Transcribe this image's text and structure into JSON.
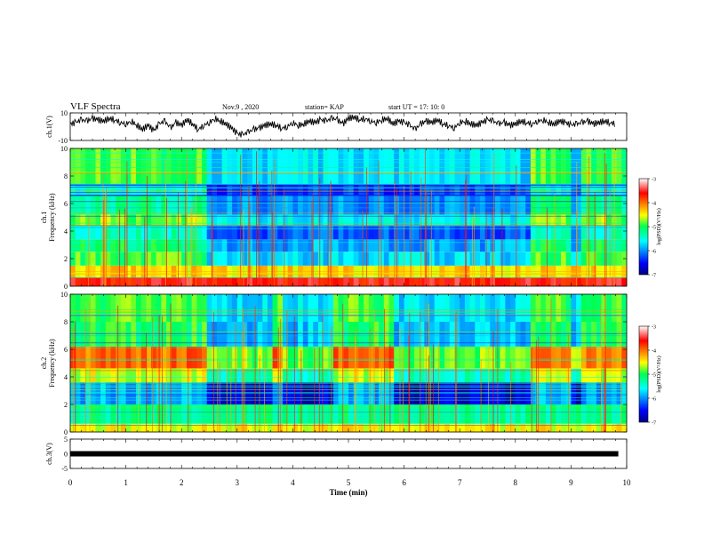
{
  "header": {
    "title": "VLF Spectra",
    "date": "Nov.9 , 2020",
    "station": "station= KAP",
    "start": "start UT = 17: 10: 0"
  },
  "chart_data": [
    {
      "type": "line",
      "panel": "ch1_waveform",
      "ylabel": "ch.1(V)",
      "ylim": [
        -10,
        10
      ],
      "yticks": [
        "10",
        "-10"
      ],
      "xlim": [
        0,
        10
      ],
      "series_color": "#000000",
      "x": [
        0,
        0.1,
        0.2,
        0.3,
        0.4,
        0.5,
        0.6,
        0.7,
        0.8,
        0.9,
        1.0,
        1.1,
        1.2,
        1.3,
        1.4,
        1.5,
        1.6,
        1.7,
        1.8,
        1.9,
        2.0,
        2.1,
        2.2,
        2.3,
        2.4,
        2.5,
        2.6,
        2.7,
        2.8,
        2.9,
        3.0,
        3.1,
        3.2,
        3.3,
        3.4,
        3.5,
        3.6,
        3.7,
        3.8,
        3.9,
        4.0,
        4.1,
        4.2,
        4.3,
        4.4,
        4.5,
        4.6,
        4.7,
        4.8,
        4.9,
        5.0,
        5.1,
        5.2,
        5.3,
        5.4,
        5.5,
        5.6,
        5.7,
        5.8,
        5.9,
        6.0,
        6.1,
        6.2,
        6.3,
        6.4,
        6.5,
        6.6,
        6.7,
        6.8,
        6.9,
        7.0,
        7.1,
        7.2,
        7.3,
        7.4,
        7.5,
        7.6,
        7.7,
        7.8,
        7.9,
        8.0,
        8.1,
        8.2,
        8.3,
        8.4,
        8.5,
        8.6,
        8.7,
        8.8,
        8.9,
        9.0,
        9.1,
        9.2,
        9.3,
        9.4,
        9.5,
        9.6,
        9.7,
        9.8
      ],
      "values": [
        2,
        3,
        5,
        4,
        6,
        5,
        4,
        6,
        5,
        3,
        2,
        4,
        1,
        -2,
        1,
        -3,
        2,
        4,
        -1,
        3,
        1,
        5,
        2,
        -2,
        1,
        3,
        6,
        4,
        2,
        -1,
        -5,
        -6,
        -4,
        -2,
        -1,
        1,
        2,
        1,
        -1,
        0,
        3,
        1,
        2,
        4,
        3,
        5,
        4,
        6,
        5,
        2,
        6,
        7,
        5,
        6,
        4,
        3,
        5,
        6,
        2,
        4,
        3,
        1,
        -2,
        2,
        4,
        3,
        5,
        2,
        1,
        -1,
        3,
        4,
        2,
        1,
        3,
        5,
        4,
        2,
        3,
        1,
        2,
        4,
        3,
        2,
        4,
        5,
        3,
        2,
        4,
        3,
        1,
        2,
        3,
        4,
        2,
        3,
        4,
        3,
        2
      ]
    },
    {
      "type": "heatmap",
      "panel": "ch1_spectrogram",
      "xlim": [
        0,
        10
      ],
      "ylim": [
        0,
        10
      ],
      "ylabel": "ch.1\nFrequency (kHz)",
      "yticks": [
        "0",
        "2",
        "4",
        "6",
        "8",
        "10"
      ],
      "colorbar": {
        "label": "log(PSD)(V²/Hz)",
        "range": [
          -7,
          -3
        ],
        "ticks": [
          "-3",
          "-4",
          "-5",
          "-6",
          "-7"
        ],
        "colormap": "jet"
      },
      "bands_khz": [
        {
          "from": 0,
          "to": 0.6,
          "level": -3.6
        },
        {
          "from": 0.6,
          "to": 1.5,
          "level": -4.4
        },
        {
          "from": 1.5,
          "to": 2.5,
          "level": -4.9
        },
        {
          "from": 2.5,
          "to": 3.4,
          "level": -5.1
        },
        {
          "from": 3.4,
          "to": 4.4,
          "level": -5.4
        },
        {
          "from": 4.4,
          "to": 5.2,
          "level": -4.8
        },
        {
          "from": 5.2,
          "to": 6.6,
          "level": -5.2
        },
        {
          "from": 6.6,
          "to": 7.4,
          "level": -5.5
        },
        {
          "from": 7.4,
          "to": 10,
          "level": -4.9
        }
      ],
      "quiet_intervals_min": [
        [
          2.5,
          5.8
        ],
        [
          5.8,
          8.25
        ],
        [
          9.0,
          9.2
        ]
      ]
    },
    {
      "type": "heatmap",
      "panel": "ch2_spectrogram",
      "xlim": [
        0,
        10
      ],
      "ylim": [
        0,
        10
      ],
      "ylabel": "ch.2\nFrequency (kHz)",
      "yticks": [
        "0",
        "2",
        "4",
        "6",
        "8",
        "10"
      ],
      "colorbar": {
        "label": "log(PSD)(V²/Hz)",
        "range": [
          -7,
          -3
        ],
        "ticks": [
          "-3",
          "-4",
          "-5",
          "-6",
          "-7"
        ],
        "colormap": "jet"
      },
      "bands_khz": [
        {
          "from": 0,
          "to": 0.6,
          "level": -4.5
        },
        {
          "from": 0.6,
          "to": 2.0,
          "level": -5.2
        },
        {
          "from": 2.0,
          "to": 3.6,
          "level": -5.9
        },
        {
          "from": 3.6,
          "to": 4.6,
          "level": -4.6
        },
        {
          "from": 4.6,
          "to": 6.2,
          "level": -4.0
        },
        {
          "from": 6.2,
          "to": 8.0,
          "level": -5.0
        },
        {
          "from": 8.0,
          "to": 10,
          "level": -4.9
        }
      ],
      "quiet_intervals_min": [
        [
          2.5,
          3.6
        ],
        [
          3.85,
          4.75
        ],
        [
          5.8,
          8.25
        ],
        [
          9.0,
          9.2
        ]
      ]
    },
    {
      "type": "line",
      "panel": "ch3_waveform",
      "ylabel": "ch.3(V)",
      "ylim": [
        -5,
        5
      ],
      "yticks": [
        "5",
        "0",
        "-5"
      ],
      "xlim": [
        0,
        10
      ],
      "series_color": "#000000",
      "x": [
        0,
        9.85
      ],
      "values": [
        0,
        0
      ]
    }
  ],
  "x_axis": {
    "label": "Time (min)",
    "ticks": [
      "0",
      "1",
      "2",
      "3",
      "4",
      "5",
      "6",
      "7",
      "8",
      "9",
      "10"
    ]
  }
}
